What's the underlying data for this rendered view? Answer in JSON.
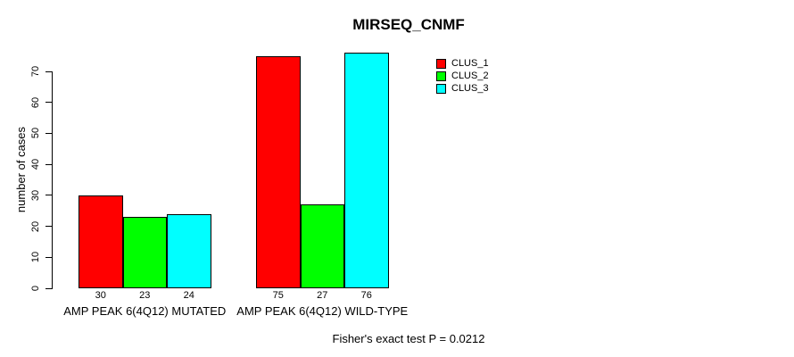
{
  "chart_data": {
    "type": "bar",
    "title": "MIRSEQ_CNMF",
    "categories": [
      "AMP PEAK 6(4Q12) MUTATED",
      "AMP PEAK 6(4Q12) WILD-TYPE"
    ],
    "series": [
      {
        "name": "CLUS_1",
        "color": "#ff0000",
        "values": [
          30,
          75
        ]
      },
      {
        "name": "CLUS_2",
        "color": "#00ff00",
        "values": [
          23,
          27
        ]
      },
      {
        "name": "CLUS_3",
        "color": "#00ffff",
        "values": [
          24,
          76
        ]
      }
    ],
    "bar_value_labels": [
      [
        "30",
        "23",
        "24"
      ],
      [
        "75",
        "27",
        "76"
      ]
    ],
    "xlabel": "",
    "ylabel": "number of cases",
    "ylim": [
      0,
      70
    ],
    "yticks": [
      0,
      10,
      20,
      30,
      40,
      50,
      60,
      70
    ],
    "grid": false,
    "legend_position": "top-right",
    "annotation": "Fisher's exact test P = 0.0212",
    "axis_color": "#000000",
    "bar_border_color": "#000000",
    "background_color": "#ffffff"
  }
}
